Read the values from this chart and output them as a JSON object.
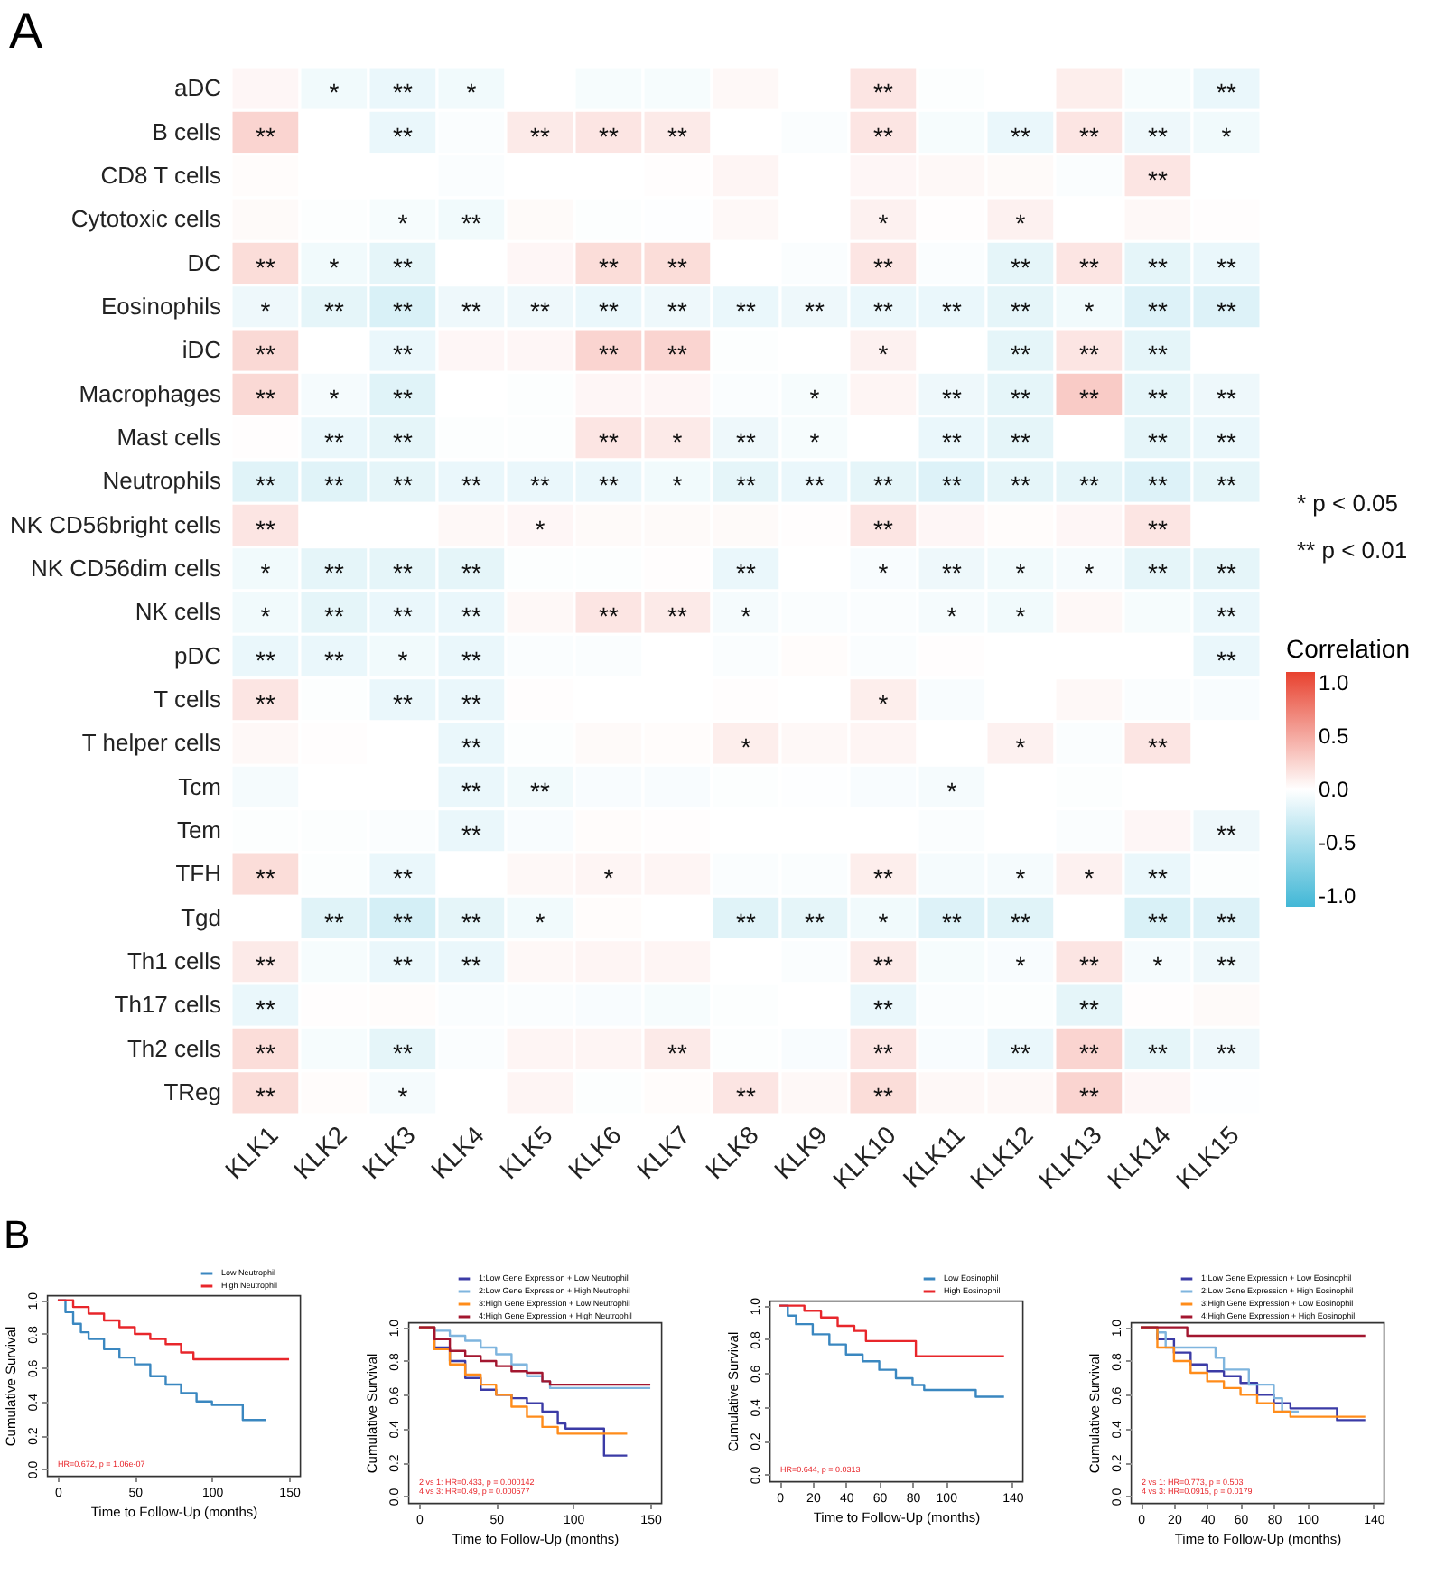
{
  "chart_data": [
    {
      "type": "heatmap",
      "title": "A",
      "clabel": "Correlation",
      "annotations": [
        "* p < 0.05",
        "** p < 0.01"
      ],
      "categories": [
        "KLK1",
        "KLK2",
        "KLK3",
        "KLK4",
        "KLK5",
        "KLK6",
        "KLK7",
        "KLK8",
        "KLK9",
        "KLK10",
        "KLK11",
        "KLK12",
        "KLK13",
        "KLK14",
        "KLK15"
      ],
      "y_categories": [
        "aDC",
        "B cells",
        "CD8 T cells",
        "Cytotoxic cells",
        "DC",
        "Eosinophils",
        "iDC",
        "Macrophages",
        "Mast cells",
        "Neutrophils",
        "NK CD56bright cells",
        "NK CD56dim cells",
        "NK cells",
        "pDC",
        "T cells",
        "T helper cells",
        "Tcm",
        "Tem",
        "TFH",
        "Tgd",
        "Th1 cells",
        "Th17 cells",
        "Th2 cells",
        "TReg"
      ],
      "clim": [
        -1.1,
        1.1
      ],
      "cticks": [
        {
          "value": -1,
          "label": "-1.0"
        },
        {
          "value": -0.5,
          "label": "-0.5"
        },
        {
          "value": 0,
          "label": "0.0"
        },
        {
          "value": 0.5,
          "label": "0.5"
        },
        {
          "value": 1,
          "label": "1.0"
        }
      ],
      "cells": [
        [
          0.05,
          -0.08,
          -0.12,
          -0.08,
          0,
          -0.05,
          -0.05,
          0.04,
          0,
          0.15,
          -0.02,
          0,
          0.1,
          -0.05,
          -0.12
        ],
        [
          0.25,
          0,
          -0.12,
          -0.03,
          0.12,
          0.15,
          0.12,
          0,
          -0.03,
          0.15,
          -0.05,
          -0.12,
          0.15,
          -0.1,
          -0.08
        ],
        [
          0.02,
          0,
          0,
          -0.03,
          0,
          0,
          0.01,
          0.06,
          0,
          0.05,
          0.04,
          0.03,
          -0.03,
          0.15,
          0
        ],
        [
          0.03,
          -0.02,
          -0.05,
          -0.08,
          0.03,
          -0.02,
          -0.01,
          0.04,
          0,
          0.08,
          0.01,
          0.08,
          0,
          0.04,
          0.01
        ],
        [
          0.2,
          -0.08,
          -0.15,
          0,
          0.05,
          0.2,
          0.2,
          0,
          -0.03,
          0.15,
          -0.03,
          -0.15,
          0.15,
          -0.15,
          -0.12
        ],
        [
          -0.1,
          -0.15,
          -0.22,
          -0.1,
          -0.1,
          -0.12,
          -0.1,
          -0.12,
          -0.1,
          -0.12,
          -0.12,
          -0.15,
          -0.08,
          -0.2,
          -0.2
        ],
        [
          0.22,
          0,
          -0.12,
          0.05,
          0.05,
          0.25,
          0.25,
          -0.02,
          0,
          0.08,
          0,
          -0.15,
          0.15,
          -0.15,
          0
        ],
        [
          0.22,
          -0.06,
          -0.18,
          0,
          -0.02,
          0.05,
          0.05,
          -0.03,
          -0.05,
          0.06,
          -0.1,
          -0.15,
          0.3,
          -0.15,
          -0.1
        ],
        [
          0.01,
          -0.12,
          -0.15,
          -0.02,
          -0.02,
          0.15,
          0.12,
          -0.1,
          -0.05,
          0,
          -0.12,
          -0.15,
          0,
          -0.15,
          -0.12
        ],
        [
          -0.18,
          -0.18,
          -0.15,
          -0.12,
          -0.12,
          -0.12,
          -0.08,
          -0.15,
          -0.12,
          -0.15,
          -0.2,
          -0.15,
          -0.15,
          -0.2,
          -0.15
        ],
        [
          0.15,
          0,
          0,
          0.04,
          0.05,
          0.03,
          0.03,
          0.03,
          0.01,
          0.15,
          0.05,
          0.02,
          0.05,
          0.15,
          0
        ],
        [
          -0.08,
          -0.15,
          -0.15,
          -0.15,
          -0.02,
          -0.02,
          0.01,
          -0.12,
          0,
          -0.04,
          -0.1,
          -0.08,
          -0.06,
          -0.15,
          -0.15
        ],
        [
          -0.08,
          -0.15,
          -0.12,
          -0.12,
          0.04,
          0.15,
          0.12,
          -0.06,
          -0.03,
          -0.03,
          -0.06,
          -0.08,
          0.04,
          -0.05,
          -0.12
        ],
        [
          -0.12,
          -0.12,
          -0.08,
          -0.12,
          -0.03,
          -0.03,
          0,
          -0.03,
          0.02,
          -0.03,
          0.01,
          0,
          0,
          0,
          -0.12
        ],
        [
          0.15,
          -0.02,
          -0.12,
          -0.12,
          0.01,
          0,
          0,
          0.01,
          0,
          0.1,
          -0.04,
          0,
          0.04,
          -0.03,
          -0.04
        ],
        [
          0.04,
          0.01,
          0,
          -0.12,
          -0.02,
          0.03,
          0.02,
          0.1,
          0.04,
          0.06,
          0,
          0.08,
          -0.03,
          0.15,
          0
        ],
        [
          -0.06,
          0,
          0,
          -0.12,
          -0.08,
          -0.04,
          -0.04,
          -0.02,
          -0.01,
          -0.04,
          -0.06,
          0,
          -0.02,
          0,
          0
        ],
        [
          -0.02,
          -0.02,
          -0.03,
          -0.12,
          -0.04,
          0.02,
          0.01,
          0,
          0,
          0,
          -0.03,
          0,
          -0.03,
          0.05,
          -0.1
        ],
        [
          0.2,
          -0.02,
          -0.12,
          0,
          0.04,
          0.06,
          0.06,
          -0.03,
          -0.03,
          0.1,
          -0.06,
          -0.06,
          0.08,
          -0.12,
          -0.02
        ],
        [
          0,
          -0.18,
          -0.25,
          -0.15,
          -0.08,
          0.02,
          0,
          -0.18,
          -0.15,
          -0.08,
          -0.2,
          -0.18,
          0,
          -0.22,
          -0.2
        ],
        [
          0.12,
          -0.05,
          -0.12,
          -0.12,
          0.04,
          0.06,
          0.06,
          0,
          -0.03,
          0.12,
          -0.05,
          -0.04,
          0.15,
          -0.06,
          -0.1
        ],
        [
          -0.12,
          0.01,
          0.02,
          -0.03,
          -0.03,
          -0.04,
          -0.05,
          -0.02,
          0,
          -0.12,
          -0.03,
          -0.02,
          -0.15,
          0.01,
          0.03
        ],
        [
          0.2,
          -0.05,
          -0.15,
          -0.03,
          0.06,
          0.06,
          0.12,
          -0.02,
          -0.04,
          0.15,
          -0.04,
          -0.12,
          0.25,
          -0.15,
          -0.1
        ],
        [
          0.2,
          0.02,
          -0.06,
          0,
          0.06,
          -0.02,
          0.02,
          0.15,
          0.04,
          0.2,
          0.04,
          0.04,
          0.25,
          0.05,
          -0.01
        ]
      ],
      "cell_labels": [
        [
          null,
          "*",
          "**",
          "*",
          null,
          null,
          null,
          null,
          null,
          "**",
          null,
          null,
          null,
          null,
          "**"
        ],
        [
          "**",
          null,
          "**",
          null,
          "**",
          "**",
          "**",
          null,
          null,
          "**",
          null,
          "**",
          "**",
          "**",
          "*"
        ],
        [
          null,
          null,
          null,
          null,
          null,
          null,
          null,
          null,
          null,
          null,
          null,
          null,
          null,
          "**",
          null
        ],
        [
          null,
          null,
          "*",
          "**",
          null,
          null,
          null,
          null,
          null,
          "*",
          null,
          "*",
          null,
          null,
          null
        ],
        [
          "**",
          "*",
          "**",
          null,
          null,
          "**",
          "**",
          null,
          null,
          "**",
          null,
          "**",
          "**",
          "**",
          "**"
        ],
        [
          "*",
          "**",
          "**",
          "**",
          "**",
          "**",
          "**",
          "**",
          "**",
          "**",
          "**",
          "**",
          "*",
          "**",
          "**"
        ],
        [
          "**",
          null,
          "**",
          null,
          null,
          "**",
          "**",
          null,
          null,
          "*",
          null,
          "**",
          "**",
          "**",
          null
        ],
        [
          "**",
          "*",
          "**",
          null,
          null,
          null,
          null,
          null,
          "*",
          null,
          "**",
          "**",
          "**",
          "**",
          "**"
        ],
        [
          null,
          "**",
          "**",
          null,
          null,
          "**",
          "*",
          "**",
          "*",
          null,
          "**",
          "**",
          null,
          "**",
          "**"
        ],
        [
          "**",
          "**",
          "**",
          "**",
          "**",
          "**",
          "*",
          "**",
          "**",
          "**",
          "**",
          "**",
          "**",
          "**",
          "**"
        ],
        [
          "**",
          null,
          null,
          null,
          "*",
          null,
          null,
          null,
          null,
          "**",
          null,
          null,
          null,
          "**",
          null
        ],
        [
          "*",
          "**",
          "**",
          "**",
          null,
          null,
          null,
          "**",
          null,
          "*",
          "**",
          "*",
          "*",
          "**",
          "**"
        ],
        [
          "*",
          "**",
          "**",
          "**",
          null,
          "**",
          "**",
          "*",
          null,
          null,
          "*",
          "*",
          null,
          null,
          "**"
        ],
        [
          "**",
          "**",
          "*",
          "**",
          null,
          null,
          null,
          null,
          null,
          null,
          null,
          null,
          null,
          null,
          "**"
        ],
        [
          "**",
          null,
          "**",
          "**",
          null,
          null,
          null,
          null,
          null,
          "*",
          null,
          null,
          null,
          null,
          null
        ],
        [
          null,
          null,
          null,
          "**",
          null,
          null,
          null,
          "*",
          null,
          null,
          null,
          "*",
          null,
          "**",
          null
        ],
        [
          null,
          null,
          null,
          "**",
          "**",
          null,
          null,
          null,
          null,
          null,
          "*",
          null,
          null,
          null,
          null
        ],
        [
          null,
          null,
          null,
          "**",
          null,
          null,
          null,
          null,
          null,
          null,
          null,
          null,
          null,
          null,
          "**"
        ],
        [
          "**",
          null,
          "**",
          null,
          null,
          "*",
          null,
          null,
          null,
          "**",
          null,
          "*",
          "*",
          "**",
          null
        ],
        [
          null,
          "**",
          "**",
          "**",
          "*",
          null,
          null,
          "**",
          "**",
          "*",
          "**",
          "**",
          null,
          "**",
          "**"
        ],
        [
          "**",
          null,
          "**",
          "**",
          null,
          null,
          null,
          null,
          null,
          "**",
          null,
          "*",
          "**",
          "*",
          "**"
        ],
        [
          "**",
          null,
          null,
          null,
          null,
          null,
          null,
          null,
          null,
          "**",
          null,
          null,
          "**",
          null,
          null
        ],
        [
          "**",
          null,
          "**",
          null,
          null,
          null,
          "**",
          null,
          null,
          "**",
          null,
          "**",
          "**",
          "**",
          "**"
        ],
        [
          "**",
          null,
          "*",
          null,
          null,
          null,
          null,
          "**",
          null,
          "**",
          null,
          null,
          "**",
          null,
          null
        ]
      ]
    },
    {
      "type": "step",
      "title": "B",
      "xlabel": "Time to Follow-Up (months)",
      "ylabel": "Cumulative Survival",
      "legend": "top right",
      "marker": "none",
      "xlim": [
        -7,
        157
      ],
      "xticks": [
        0,
        50,
        100,
        150
      ],
      "ylim": [
        -0.04,
        1.03
      ],
      "yticks": [
        {
          "value": 0,
          "label": "0.0"
        },
        {
          "value": 0.2,
          "label": "0.2"
        },
        {
          "value": 0.4,
          "label": "0.4"
        },
        {
          "value": 0.6,
          "label": "0.6"
        },
        {
          "value": 0.8,
          "label": "0.8"
        },
        {
          "value": 1,
          "label": "1.0"
        }
      ],
      "annotations": [
        "HR=0.672, p = 1.06e-07"
      ],
      "series": [
        {
          "name": "Low Neutrophil",
          "color": "#3a87c0",
          "x": [
            0,
            5,
            10,
            15,
            20,
            30,
            40,
            50,
            60,
            70,
            80,
            90,
            100,
            110,
            118,
            120,
            135
          ],
          "values": [
            1,
            0.93,
            0.86,
            0.81,
            0.77,
            0.71,
            0.66,
            0.62,
            0.55,
            0.5,
            0.45,
            0.4,
            0.38,
            0.38,
            0.38,
            0.29,
            0.29
          ]
        },
        {
          "name": "High Neutrophil",
          "color": "#e8262b",
          "x": [
            0,
            10,
            20,
            30,
            40,
            50,
            60,
            70,
            80,
            88,
            100,
            150
          ],
          "values": [
            1,
            0.96,
            0.92,
            0.88,
            0.84,
            0.8,
            0.77,
            0.74,
            0.69,
            0.65,
            0.65,
            0.65
          ]
        }
      ]
    },
    {
      "type": "step",
      "xlabel": "Time to Follow-Up (months)",
      "ylabel": "Cumulative Survival",
      "legend": "top right",
      "marker": "none",
      "xlim": [
        -7,
        157
      ],
      "xticks": [
        0,
        50,
        100,
        150
      ],
      "ylim": [
        -0.04,
        1.03
      ],
      "yticks": [
        {
          "value": 0,
          "label": "0.0"
        },
        {
          "value": 0.2,
          "label": "0.2"
        },
        {
          "value": 0.4,
          "label": "0.4"
        },
        {
          "value": 0.6,
          "label": "0.6"
        },
        {
          "value": 0.8,
          "label": "0.8"
        },
        {
          "value": 1,
          "label": "1.0"
        }
      ],
      "annotations": [
        "2 vs 1: HR=0.433, p = 0.000142",
        "4 vs 3: HR=0.49, p = 0.000577"
      ],
      "series": [
        {
          "name": "1:Low Gene Expression + Low Neutrophil",
          "color": "#3b3ba6",
          "x": [
            0,
            10,
            20,
            30,
            40,
            50,
            60,
            70,
            80,
            90,
            95,
            110,
            120,
            135
          ],
          "values": [
            1,
            0.88,
            0.8,
            0.7,
            0.63,
            0.6,
            0.58,
            0.55,
            0.5,
            0.43,
            0.4,
            0.4,
            0.24,
            0.24
          ]
        },
        {
          "name": "2:Low Gene Expression + High Neutrophil",
          "color": "#7fb5de",
          "x": [
            0,
            10,
            20,
            30,
            40,
            50,
            60,
            70,
            80,
            85,
            150
          ],
          "values": [
            1,
            0.98,
            0.95,
            0.92,
            0.88,
            0.84,
            0.78,
            0.71,
            0.68,
            0.64,
            0.64
          ]
        },
        {
          "name": "3:High Gene Expression + Low Neutrophil",
          "color": "#ff8c1a",
          "x": [
            0,
            10,
            20,
            30,
            40,
            50,
            60,
            70,
            80,
            90,
            100,
            135
          ],
          "values": [
            1,
            0.87,
            0.78,
            0.72,
            0.66,
            0.6,
            0.53,
            0.47,
            0.41,
            0.37,
            0.37,
            0.37
          ]
        },
        {
          "name": "4:High Gene Expression + High Neutrophil",
          "color": "#a3162f",
          "x": [
            0,
            10,
            20,
            30,
            40,
            50,
            60,
            70,
            80,
            85,
            150
          ],
          "values": [
            1,
            0.93,
            0.86,
            0.83,
            0.8,
            0.77,
            0.74,
            0.73,
            0.68,
            0.66,
            0.66
          ]
        }
      ]
    },
    {
      "type": "step",
      "xlabel": "Time to Follow-Up (months)",
      "ylabel": "Cumulative Survival",
      "legend": "top right",
      "marker": "none",
      "xlim": [
        -6,
        146
      ],
      "xticks": [
        0,
        20,
        40,
        60,
        80,
        100,
        140
      ],
      "ylim": [
        -0.04,
        1.03
      ],
      "yticks": [
        {
          "value": 0,
          "label": "0.0"
        },
        {
          "value": 0.2,
          "label": "0.2"
        },
        {
          "value": 0.4,
          "label": "0.4"
        },
        {
          "value": 0.6,
          "label": "0.6"
        },
        {
          "value": 0.8,
          "label": "0.8"
        },
        {
          "value": 1,
          "label": "1.0"
        }
      ],
      "annotations": [
        "HR=0.644, p = 0.0313"
      ],
      "series": [
        {
          "name": "Low Eosinophil",
          "color": "#3a87c0",
          "x": [
            0,
            5,
            10,
            20,
            30,
            40,
            50,
            60,
            70,
            80,
            87,
            100,
            118,
            135
          ],
          "values": [
            1,
            0.94,
            0.89,
            0.83,
            0.77,
            0.71,
            0.67,
            0.62,
            0.57,
            0.53,
            0.5,
            0.5,
            0.46,
            0.46
          ]
        },
        {
          "name": "High Eosinophil",
          "color": "#e8262b",
          "x": [
            0,
            10,
            15,
            25,
            35,
            45,
            52,
            80,
            82,
            135
          ],
          "values": [
            1,
            1,
            0.97,
            0.93,
            0.88,
            0.85,
            0.79,
            0.79,
            0.7,
            0.7
          ]
        }
      ]
    },
    {
      "type": "step",
      "xlabel": "Time to Follow-Up (months)",
      "ylabel": "Cumulative Survival",
      "legend": "top right",
      "marker": "none",
      "xlim": [
        -6,
        146
      ],
      "xticks": [
        0,
        20,
        40,
        60,
        80,
        100,
        140
      ],
      "ylim": [
        -0.04,
        1.03
      ],
      "yticks": [
        {
          "value": 0,
          "label": "0.0"
        },
        {
          "value": 0.2,
          "label": "0.2"
        },
        {
          "value": 0.4,
          "label": "0.4"
        },
        {
          "value": 0.6,
          "label": "0.6"
        },
        {
          "value": 0.8,
          "label": "0.8"
        },
        {
          "value": 1,
          "label": "1.0"
        }
      ],
      "annotations": [
        "2 vs 1: HR=0.773, p = 0.503",
        "4 vs 3: HR=0.0915, p = 0.0179"
      ],
      "series": [
        {
          "name": "1:Low Gene Expression + Low Eosinophil",
          "color": "#3b3ba6",
          "x": [
            0,
            10,
            20,
            30,
            40,
            50,
            60,
            70,
            80,
            90,
            118,
            135
          ],
          "values": [
            1,
            0.93,
            0.85,
            0.78,
            0.74,
            0.71,
            0.67,
            0.6,
            0.55,
            0.52,
            0.45,
            0.45
          ]
        },
        {
          "name": "2:Low Gene Expression + High Eosinophil",
          "color": "#7fb5de",
          "x": [
            0,
            10,
            15,
            30,
            45,
            50,
            65,
            80,
            85,
            95
          ],
          "values": [
            1,
            0.97,
            0.88,
            0.88,
            0.82,
            0.75,
            0.66,
            0.58,
            0.5,
            0.5
          ]
        },
        {
          "name": "3:High Gene Expression + Low Eosinophil",
          "color": "#ff8c1a",
          "x": [
            0,
            10,
            20,
            30,
            40,
            50,
            60,
            70,
            80,
            90,
            135
          ],
          "values": [
            1,
            0.88,
            0.8,
            0.73,
            0.68,
            0.64,
            0.6,
            0.55,
            0.5,
            0.47,
            0.47
          ]
        },
        {
          "name": "4:High Gene Expression + High Eosinophil",
          "color": "#a3162f",
          "x": [
            0,
            28,
            135
          ],
          "values": [
            1,
            0.95,
            0.95
          ]
        }
      ]
    }
  ]
}
